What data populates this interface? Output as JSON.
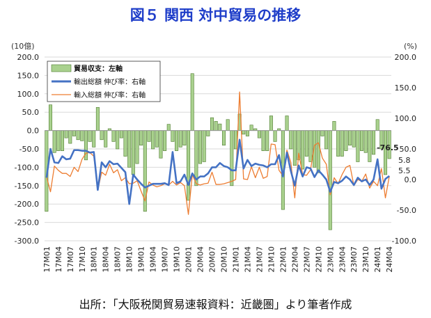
{
  "title": "図５ 関西 対中貿易の推移",
  "source": "出所：「大阪税関貿易速報資料：近畿圏」より筆者作成",
  "chart_data": {
    "type": "bar+line",
    "left_axis": {
      "unit": "(10億)",
      "ylim": [
        -300,
        200
      ],
      "ticks": [
        "200.0",
        "150.0",
        "100.0",
        "50.0",
        "0.0",
        "-50.0",
        "-100.0",
        "-150.0",
        "-200.0",
        "-250.0",
        "-300.0"
      ]
    },
    "right_axis": {
      "unit": "(%)",
      "ylim": [
        -100,
        200
      ],
      "ticks": [
        "200.0",
        "150.0",
        "100.0",
        "50.0",
        "0.0",
        "-50.0",
        "-100.0"
      ]
    },
    "x_tick_labels": [
      "17M01",
      "17M04",
      "17M07",
      "17M10",
      "18M01",
      "18M04",
      "18M07",
      "18M10",
      "19M01",
      "19M04",
      "19M07",
      "19M10",
      "20M01",
      "20M04",
      "20M07",
      "20M10",
      "21M01",
      "21M04",
      "21M07",
      "21M10",
      "22M01",
      "22M04",
      "22M07",
      "22M10",
      "23M01",
      "23M04",
      "23M07",
      "23M10",
      "24M01",
      "24M04"
    ],
    "legend": [
      "貿易収支：左軸",
      "輸出総額 伸び率：右軸",
      "輸入総額 伸び率：右軸"
    ],
    "annotations": [
      {
        "text": "-76.5",
        "color": "#e03030"
      },
      {
        "text": "5.8",
        "color": "#333333"
      },
      {
        "text": "5.5",
        "color": "#333333"
      }
    ],
    "colors": {
      "balance": "#a9d18e",
      "balance_edge": "#4e7a2e",
      "export": "#4472c4",
      "import": "#ed7d31",
      "grid": "#d9d9d9"
    },
    "x": [
      "17M01",
      "17M02",
      "17M03",
      "17M04",
      "17M05",
      "17M06",
      "17M07",
      "17M08",
      "17M09",
      "17M10",
      "17M11",
      "17M12",
      "18M01",
      "18M02",
      "18M03",
      "18M04",
      "18M05",
      "18M06",
      "18M07",
      "18M08",
      "18M09",
      "18M10",
      "18M11",
      "18M12",
      "19M01",
      "19M02",
      "19M03",
      "19M04",
      "19M05",
      "19M06",
      "19M07",
      "19M08",
      "19M09",
      "19M10",
      "19M11",
      "19M12",
      "20M01",
      "20M02",
      "20M03",
      "20M04",
      "20M05",
      "20M06",
      "20M07",
      "20M08",
      "20M09",
      "20M10",
      "20M11",
      "20M12",
      "21M01",
      "21M02",
      "21M03",
      "21M04",
      "21M05",
      "21M06",
      "21M07",
      "21M08",
      "21M09",
      "21M10",
      "21M11",
      "21M12",
      "22M01",
      "22M02",
      "22M03",
      "22M04",
      "22M05",
      "22M06",
      "22M07",
      "22M08",
      "22M09",
      "22M10",
      "22M11",
      "22M12",
      "23M01",
      "23M02",
      "23M03",
      "23M04",
      "23M05",
      "23M06",
      "23M07",
      "23M08",
      "23M09",
      "23M10",
      "23M11",
      "23M12",
      "24M01",
      "24M02",
      "24M03",
      "24M04"
    ],
    "series": [
      {
        "name": "貿易収支：左軸",
        "axis": "left",
        "type": "bar",
        "values": [
          -220,
          70,
          -60,
          -55,
          -55,
          -20,
          -35,
          -15,
          -25,
          -28,
          -80,
          -30,
          -45,
          63,
          -25,
          -45,
          5,
          -30,
          -50,
          -20,
          -70,
          -100,
          -120,
          -90,
          -40,
          -220,
          -30,
          -50,
          -45,
          -75,
          -55,
          17,
          -30,
          -55,
          -45,
          -40,
          -190,
          155,
          -150,
          -90,
          -85,
          -15,
          35,
          25,
          18,
          -40,
          30,
          -150,
          -50,
          45,
          -10,
          -15,
          15,
          5,
          -20,
          -55,
          -55,
          40,
          -30,
          5,
          -215,
          40,
          -50,
          -95,
          -80,
          -105,
          -70,
          -85,
          -100,
          -115,
          -15,
          -50,
          -270,
          25,
          -70,
          -70,
          -55,
          -40,
          -45,
          -85,
          -55,
          -60,
          -85,
          -65,
          30,
          -50,
          -120,
          -76.5
        ]
      },
      {
        "name": "輸出総額 伸び率：右軸",
        "axis": "right",
        "type": "line",
        "values": [
          3,
          50,
          28,
          27,
          38,
          33,
          34,
          48,
          48,
          47,
          47,
          44,
          45,
          -17,
          28,
          20,
          30,
          25,
          26,
          19,
          12,
          -40,
          8,
          0,
          -7,
          -13,
          -10,
          -7,
          -7,
          -7,
          -6,
          -9,
          45,
          -6,
          -3,
          8,
          -9,
          10,
          0,
          5,
          5,
          10,
          20,
          20,
          27,
          22,
          20,
          15,
          15,
          65,
          18,
          32,
          22,
          26,
          24,
          23,
          20,
          25,
          25,
          40,
          5,
          44,
          14,
          -10,
          23,
          5,
          20,
          18,
          4,
          15,
          8,
          0,
          -20,
          -4,
          -6,
          -2,
          5,
          0,
          -9,
          3,
          -3,
          0,
          -9,
          0,
          33,
          -15,
          1,
          5.8
        ]
      },
      {
        "name": "輸入総額 伸び率：右軸",
        "axis": "right",
        "type": "line",
        "values": [
          5,
          -20,
          22,
          15,
          10,
          10,
          5,
          20,
          13,
          33,
          43,
          44,
          38,
          -17,
          12,
          7,
          25,
          11,
          16,
          -2,
          3,
          -7,
          -6,
          -2,
          -19,
          -35,
          -4,
          -9,
          -12,
          -10,
          -7,
          -9,
          -3,
          -9,
          -5,
          -10,
          -57,
          8,
          -7,
          -9,
          -7,
          -6,
          12,
          -8,
          -8,
          -7,
          -5,
          -3,
          0,
          143,
          1,
          0,
          21,
          3,
          20,
          2,
          5,
          58,
          57,
          15,
          6,
          48,
          28,
          -30,
          43,
          8,
          7,
          16,
          56,
          60,
          35,
          25,
          -25,
          3,
          -7,
          8,
          20,
          23,
          -10,
          0,
          -3,
          9,
          -14,
          -3,
          -10,
          18,
          -30,
          5.5
        ]
      }
    ]
  }
}
